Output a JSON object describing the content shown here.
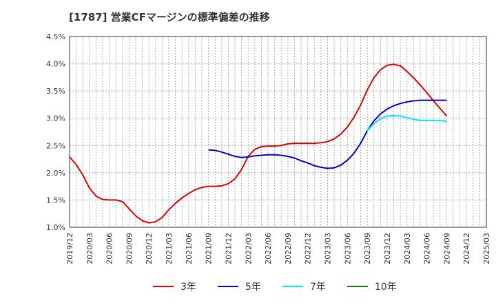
{
  "chart_data": {
    "type": "line",
    "title": "[1787]  営業CFマージンの標準偏差の推移",
    "xlabel": "",
    "ylabel": "",
    "ylim": [
      1.0,
      4.5
    ],
    "y_ticks": [
      "1.0%",
      "1.5%",
      "2.0%",
      "2.5%",
      "3.0%",
      "3.5%",
      "4.0%",
      "4.5%"
    ],
    "x_ticks": [
      "2019/12",
      "2020/03",
      "2020/06",
      "2020/09",
      "2020/12",
      "2021/03",
      "2021/06",
      "2021/09",
      "2021/12",
      "2022/03",
      "2022/06",
      "2022/09",
      "2022/12",
      "2023/03",
      "2023/06",
      "2023/09",
      "2023/12",
      "2024/03",
      "2024/06",
      "2024/09",
      "2024/12",
      "2025/03"
    ],
    "x_range": [
      "2019/12",
      "2025/03"
    ],
    "grid": true,
    "legend_position": "bottom",
    "series": [
      {
        "name": "3年",
        "color": "#e00000",
        "points": [
          [
            "2019/12",
            2.29
          ],
          [
            "2020/01",
            2.15
          ],
          [
            "2020/02",
            1.96
          ],
          [
            "2020/03",
            1.72
          ],
          [
            "2020/04",
            1.57
          ],
          [
            "2020/05",
            1.51
          ],
          [
            "2020/06",
            1.5
          ],
          [
            "2020/07",
            1.5
          ],
          [
            "2020/08",
            1.47
          ],
          [
            "2020/09",
            1.34
          ],
          [
            "2020/10",
            1.21
          ],
          [
            "2020/11",
            1.12
          ],
          [
            "2020/12",
            1.08
          ],
          [
            "2021/01",
            1.1
          ],
          [
            "2021/02",
            1.18
          ],
          [
            "2021/03",
            1.32
          ],
          [
            "2021/04",
            1.44
          ],
          [
            "2021/05",
            1.54
          ],
          [
            "2021/06",
            1.62
          ],
          [
            "2021/07",
            1.69
          ],
          [
            "2021/08",
            1.73
          ],
          [
            "2021/09",
            1.75
          ],
          [
            "2021/10",
            1.75
          ],
          [
            "2021/11",
            1.76
          ],
          [
            "2021/12",
            1.8
          ],
          [
            "2022/01",
            1.89
          ],
          [
            "2022/02",
            2.06
          ],
          [
            "2022/03",
            2.3
          ],
          [
            "2022/04",
            2.43
          ],
          [
            "2022/05",
            2.48
          ],
          [
            "2022/06",
            2.49
          ],
          [
            "2022/07",
            2.49
          ],
          [
            "2022/08",
            2.5
          ],
          [
            "2022/09",
            2.53
          ],
          [
            "2022/10",
            2.54
          ],
          [
            "2022/11",
            2.54
          ],
          [
            "2022/12",
            2.54
          ],
          [
            "2023/01",
            2.54
          ],
          [
            "2023/02",
            2.55
          ],
          [
            "2023/03",
            2.57
          ],
          [
            "2023/04",
            2.62
          ],
          [
            "2023/05",
            2.71
          ],
          [
            "2023/06",
            2.84
          ],
          [
            "2023/07",
            3.02
          ],
          [
            "2023/08",
            3.24
          ],
          [
            "2023/09",
            3.52
          ],
          [
            "2023/10",
            3.74
          ],
          [
            "2023/11",
            3.89
          ],
          [
            "2023/12",
            3.97
          ],
          [
            "2024/01",
            3.99
          ],
          [
            "2024/02",
            3.96
          ],
          [
            "2024/03",
            3.86
          ],
          [
            "2024/04",
            3.74
          ],
          [
            "2024/05",
            3.61
          ],
          [
            "2024/06",
            3.47
          ],
          [
            "2024/07",
            3.32
          ],
          [
            "2024/08",
            3.18
          ],
          [
            "2024/09",
            3.04
          ]
        ]
      },
      {
        "name": "5年",
        "color": "#0000c8",
        "points": [
          [
            "2021/09",
            2.42
          ],
          [
            "2021/10",
            2.41
          ],
          [
            "2021/11",
            2.38
          ],
          [
            "2021/12",
            2.34
          ],
          [
            "2022/01",
            2.3
          ],
          [
            "2022/02",
            2.28
          ],
          [
            "2022/03",
            2.29
          ],
          [
            "2022/04",
            2.31
          ],
          [
            "2022/05",
            2.32
          ],
          [
            "2022/06",
            2.33
          ],
          [
            "2022/07",
            2.33
          ],
          [
            "2022/08",
            2.32
          ],
          [
            "2022/09",
            2.3
          ],
          [
            "2022/10",
            2.27
          ],
          [
            "2022/11",
            2.22
          ],
          [
            "2022/12",
            2.18
          ],
          [
            "2023/01",
            2.13
          ],
          [
            "2023/02",
            2.1
          ],
          [
            "2023/03",
            2.08
          ],
          [
            "2023/04",
            2.09
          ],
          [
            "2023/05",
            2.14
          ],
          [
            "2023/06",
            2.23
          ],
          [
            "2023/07",
            2.36
          ],
          [
            "2023/08",
            2.54
          ],
          [
            "2023/09",
            2.77
          ],
          [
            "2023/10",
            2.95
          ],
          [
            "2023/11",
            3.08
          ],
          [
            "2023/12",
            3.17
          ],
          [
            "2024/01",
            3.23
          ],
          [
            "2024/02",
            3.27
          ],
          [
            "2024/03",
            3.3
          ],
          [
            "2024/04",
            3.32
          ],
          [
            "2024/05",
            3.33
          ],
          [
            "2024/06",
            3.33
          ],
          [
            "2024/07",
            3.33
          ],
          [
            "2024/08",
            3.33
          ],
          [
            "2024/09",
            3.33
          ]
        ]
      },
      {
        "name": "7年",
        "color": "#00e5ff",
        "points": [
          [
            "2023/09",
            2.77
          ],
          [
            "2023/10",
            2.9
          ],
          [
            "2023/11",
            2.99
          ],
          [
            "2023/12",
            3.04
          ],
          [
            "2024/01",
            3.05
          ],
          [
            "2024/02",
            3.04
          ],
          [
            "2024/03",
            3.01
          ],
          [
            "2024/04",
            2.98
          ],
          [
            "2024/05",
            2.96
          ],
          [
            "2024/06",
            2.96
          ],
          [
            "2024/07",
            2.96
          ],
          [
            "2024/08",
            2.96
          ],
          [
            "2024/09",
            2.94
          ]
        ]
      },
      {
        "name": "10年",
        "color": "#008000",
        "points": []
      }
    ]
  }
}
